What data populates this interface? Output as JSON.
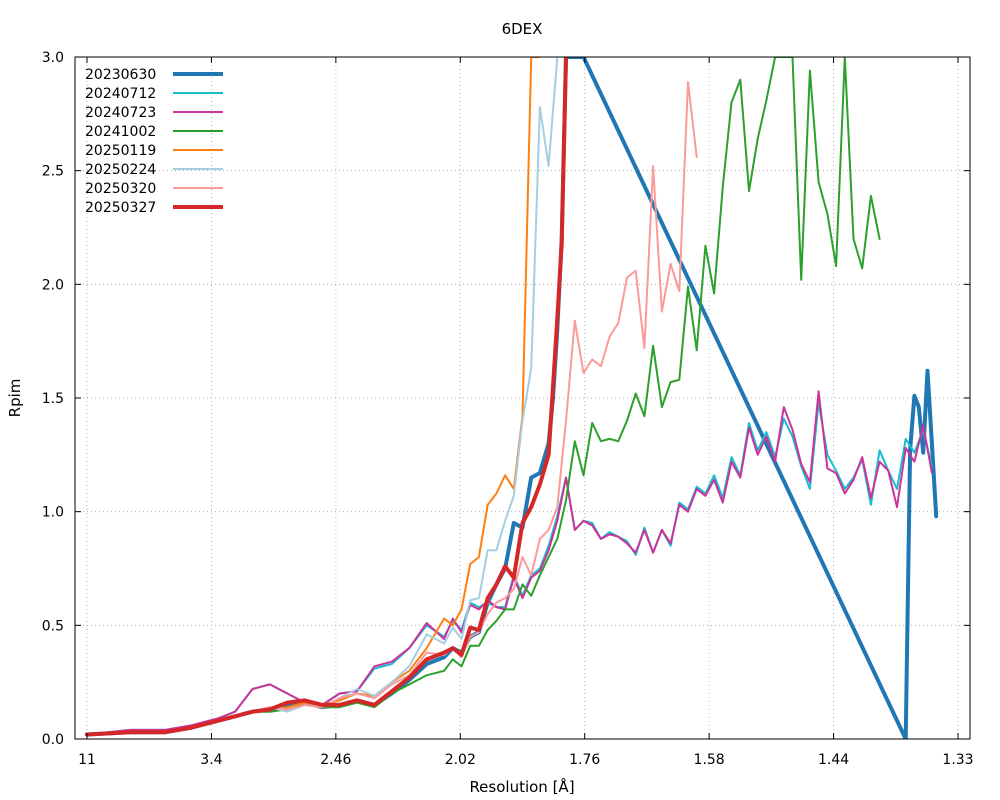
{
  "chart_data": {
    "type": "line",
    "title": "6DEX",
    "xlabel": "Resolution [Å]",
    "ylabel": "Rpim",
    "ylim": [
      0,
      3.0
    ],
    "x_ticks": [
      "11",
      "3.4",
      "2.46",
      "2.02",
      "1.76",
      "1.58",
      "1.44",
      "1.33"
    ],
    "y_ticks": [
      "0.0",
      "0.5",
      "1.0",
      "1.5",
      "2.0",
      "2.5",
      "3.0"
    ],
    "grid": true,
    "legend_position": "top-left",
    "x_note": "x values are the data points' positions (0-1) along the resolution axis between 11 Å and 1.33 Å",
    "series": [
      {
        "name": "20230630",
        "color": "#1f77b4",
        "width": 4,
        "x": [
          0.0,
          0.05,
          0.09,
          0.12,
          0.15,
          0.17,
          0.19,
          0.21,
          0.23,
          0.25,
          0.27,
          0.29,
          0.31,
          0.33,
          0.35,
          0.37,
          0.39,
          0.41,
          0.42,
          0.43,
          0.44,
          0.45,
          0.46,
          0.47,
          0.48,
          0.49,
          0.5,
          0.51,
          0.52,
          0.53,
          0.535,
          0.54,
          0.545,
          0.55,
          0.555,
          0.56,
          0.565,
          0.57,
          0.94,
          0.945,
          0.95,
          0.955,
          0.96,
          0.965,
          0.97,
          0.975
        ],
        "y": [
          0.02,
          0.03,
          0.03,
          0.05,
          0.08,
          0.1,
          0.12,
          0.13,
          0.15,
          0.16,
          0.14,
          0.15,
          0.17,
          0.15,
          0.2,
          0.26,
          0.33,
          0.36,
          0.4,
          0.38,
          0.45,
          0.47,
          0.6,
          0.68,
          0.75,
          0.95,
          0.93,
          1.15,
          1.17,
          1.3,
          1.5,
          1.8,
          2.2,
          3.0,
          3.0,
          3.0,
          3.0,
          3.0,
          0.0,
          1.27,
          1.51,
          1.46,
          1.26,
          1.62,
          1.3,
          0.98
        ]
      },
      {
        "name": "20240712",
        "color": "#17becf",
        "width": 2,
        "x": [
          0.0,
          0.05,
          0.09,
          0.12,
          0.15,
          0.17,
          0.19,
          0.21,
          0.23,
          0.25,
          0.27,
          0.29,
          0.31,
          0.33,
          0.35,
          0.37,
          0.39,
          0.41,
          0.42,
          0.43,
          0.44,
          0.45,
          0.46,
          0.47,
          0.48,
          0.49,
          0.5,
          0.51,
          0.52,
          0.53,
          0.54,
          0.55,
          0.56,
          0.57,
          0.58,
          0.59,
          0.6,
          0.61,
          0.62,
          0.63,
          0.64,
          0.65,
          0.66,
          0.67,
          0.68,
          0.69,
          0.7,
          0.71,
          0.72,
          0.73,
          0.74,
          0.75,
          0.76,
          0.77,
          0.78,
          0.79,
          0.8,
          0.81,
          0.82,
          0.83,
          0.84,
          0.85,
          0.86,
          0.87,
          0.88,
          0.89,
          0.9,
          0.91,
          0.92,
          0.93,
          0.94,
          0.95,
          0.96,
          0.97
        ],
        "y": [
          0.02,
          0.04,
          0.04,
          0.06,
          0.09,
          0.12,
          0.22,
          0.24,
          0.2,
          0.16,
          0.15,
          0.2,
          0.21,
          0.31,
          0.33,
          0.4,
          0.5,
          0.45,
          0.52,
          0.48,
          0.6,
          0.58,
          0.6,
          0.58,
          0.58,
          0.72,
          0.63,
          0.72,
          0.75,
          0.85,
          0.98,
          1.15,
          0.92,
          0.96,
          0.95,
          0.88,
          0.91,
          0.89,
          0.87,
          0.81,
          0.93,
          0.82,
          0.92,
          0.85,
          1.04,
          1.01,
          1.11,
          1.08,
          1.16,
          1.06,
          1.24,
          1.16,
          1.39,
          1.27,
          1.35,
          1.24,
          1.41,
          1.33,
          1.2,
          1.1,
          1.48,
          1.25,
          1.18,
          1.1,
          1.15,
          1.23,
          1.03,
          1.27,
          1.18,
          1.1,
          1.32,
          1.26,
          1.36,
          1.2
        ]
      },
      {
        "name": "20240723",
        "color": "#cc3399",
        "width": 2,
        "x": [
          0.0,
          0.05,
          0.09,
          0.12,
          0.15,
          0.17,
          0.19,
          0.21,
          0.23,
          0.25,
          0.27,
          0.29,
          0.31,
          0.33,
          0.35,
          0.37,
          0.39,
          0.41,
          0.42,
          0.43,
          0.44,
          0.45,
          0.46,
          0.47,
          0.48,
          0.49,
          0.5,
          0.51,
          0.52,
          0.53,
          0.54,
          0.55,
          0.56,
          0.57,
          0.58,
          0.59,
          0.6,
          0.61,
          0.62,
          0.63,
          0.64,
          0.65,
          0.66,
          0.67,
          0.68,
          0.69,
          0.7,
          0.71,
          0.72,
          0.73,
          0.74,
          0.75,
          0.76,
          0.77,
          0.78,
          0.79,
          0.8,
          0.81,
          0.82,
          0.83,
          0.84,
          0.85,
          0.86,
          0.87,
          0.88,
          0.89,
          0.9,
          0.91,
          0.92,
          0.93,
          0.94,
          0.95,
          0.96,
          0.97
        ],
        "y": [
          0.02,
          0.04,
          0.04,
          0.06,
          0.09,
          0.12,
          0.22,
          0.24,
          0.2,
          0.16,
          0.15,
          0.2,
          0.21,
          0.32,
          0.34,
          0.4,
          0.51,
          0.44,
          0.53,
          0.47,
          0.59,
          0.57,
          0.61,
          0.58,
          0.57,
          0.71,
          0.62,
          0.71,
          0.74,
          0.83,
          0.96,
          1.15,
          0.92,
          0.96,
          0.94,
          0.88,
          0.9,
          0.89,
          0.86,
          0.82,
          0.92,
          0.82,
          0.92,
          0.86,
          1.03,
          1.0,
          1.1,
          1.07,
          1.14,
          1.04,
          1.22,
          1.15,
          1.37,
          1.25,
          1.33,
          1.22,
          1.46,
          1.36,
          1.21,
          1.13,
          1.53,
          1.19,
          1.17,
          1.08,
          1.14,
          1.24,
          1.06,
          1.22,
          1.18,
          1.02,
          1.28,
          1.22,
          1.38,
          1.17
        ]
      },
      {
        "name": "20241002",
        "color": "#2ca02c",
        "width": 2,
        "x": [
          0.0,
          0.05,
          0.09,
          0.12,
          0.15,
          0.17,
          0.19,
          0.21,
          0.23,
          0.25,
          0.27,
          0.29,
          0.31,
          0.33,
          0.35,
          0.37,
          0.39,
          0.41,
          0.42,
          0.43,
          0.44,
          0.45,
          0.46,
          0.47,
          0.48,
          0.49,
          0.5,
          0.51,
          0.52,
          0.53,
          0.54,
          0.55,
          0.56,
          0.57,
          0.58,
          0.59,
          0.6,
          0.61,
          0.62,
          0.63,
          0.64,
          0.65,
          0.66,
          0.67,
          0.68,
          0.69,
          0.7,
          0.71,
          0.72,
          0.73,
          0.74,
          0.75,
          0.76,
          0.77,
          0.78,
          0.79,
          0.8,
          0.81,
          0.82,
          0.83,
          0.84,
          0.85,
          0.86,
          0.87,
          0.88,
          0.89,
          0.9,
          0.91
        ],
        "y": [
          0.02,
          0.03,
          0.03,
          0.05,
          0.08,
          0.1,
          0.12,
          0.12,
          0.13,
          0.15,
          0.14,
          0.14,
          0.16,
          0.14,
          0.2,
          0.24,
          0.28,
          0.3,
          0.35,
          0.32,
          0.41,
          0.41,
          0.48,
          0.52,
          0.57,
          0.57,
          0.68,
          0.63,
          0.72,
          0.8,
          0.88,
          1.05,
          1.31,
          1.16,
          1.39,
          1.31,
          1.32,
          1.31,
          1.4,
          1.52,
          1.42,
          1.73,
          1.46,
          1.57,
          1.58,
          1.99,
          1.71,
          2.17,
          1.96,
          2.43,
          2.8,
          2.9,
          2.41,
          2.64,
          2.81,
          3.0,
          3.0,
          3.0,
          2.02,
          2.94,
          2.45,
          2.31,
          2.08,
          3.0,
          2.2,
          2.07,
          2.39,
          2.2
        ]
      },
      {
        "name": "20250119",
        "color": "#ff7f0e",
        "width": 2,
        "x": [
          0.0,
          0.05,
          0.09,
          0.12,
          0.15,
          0.17,
          0.19,
          0.21,
          0.23,
          0.25,
          0.27,
          0.29,
          0.31,
          0.33,
          0.35,
          0.37,
          0.39,
          0.41,
          0.42,
          0.43,
          0.44,
          0.45,
          0.46,
          0.47,
          0.48,
          0.49,
          0.5,
          0.51,
          0.515,
          0.52
        ],
        "y": [
          0.02,
          0.03,
          0.03,
          0.05,
          0.08,
          0.1,
          0.12,
          0.13,
          0.14,
          0.16,
          0.15,
          0.17,
          0.2,
          0.19,
          0.25,
          0.3,
          0.4,
          0.53,
          0.5,
          0.57,
          0.77,
          0.8,
          1.03,
          1.08,
          1.16,
          1.1,
          1.42,
          3.0,
          3.0,
          3.0
        ]
      },
      {
        "name": "20250224",
        "color": "#a6cee3",
        "width": 2,
        "x": [
          0.0,
          0.05,
          0.09,
          0.12,
          0.15,
          0.17,
          0.19,
          0.21,
          0.23,
          0.25,
          0.27,
          0.29,
          0.31,
          0.33,
          0.35,
          0.37,
          0.39,
          0.41,
          0.42,
          0.43,
          0.44,
          0.45,
          0.46,
          0.47,
          0.48,
          0.49,
          0.5,
          0.51,
          0.52,
          0.53,
          0.54
        ],
        "y": [
          0.02,
          0.03,
          0.03,
          0.05,
          0.08,
          0.1,
          0.12,
          0.14,
          0.12,
          0.15,
          0.14,
          0.18,
          0.22,
          0.19,
          0.25,
          0.32,
          0.46,
          0.42,
          0.49,
          0.44,
          0.61,
          0.62,
          0.83,
          0.83,
          0.96,
          1.07,
          1.4,
          1.63,
          2.78,
          2.52,
          3.0
        ]
      },
      {
        "name": "20250320",
        "color": "#fb9a99",
        "width": 2,
        "x": [
          0.0,
          0.05,
          0.09,
          0.12,
          0.15,
          0.17,
          0.19,
          0.21,
          0.23,
          0.25,
          0.27,
          0.29,
          0.31,
          0.33,
          0.35,
          0.37,
          0.39,
          0.41,
          0.42,
          0.43,
          0.44,
          0.45,
          0.46,
          0.47,
          0.48,
          0.49,
          0.5,
          0.51,
          0.52,
          0.53,
          0.54,
          0.55,
          0.56,
          0.57,
          0.58,
          0.59,
          0.6,
          0.61,
          0.62,
          0.63,
          0.64,
          0.65,
          0.66,
          0.67,
          0.68,
          0.69,
          0.7
        ],
        "y": [
          0.02,
          0.03,
          0.03,
          0.05,
          0.08,
          0.1,
          0.12,
          0.14,
          0.13,
          0.15,
          0.14,
          0.18,
          0.2,
          0.18,
          0.24,
          0.28,
          0.38,
          0.37,
          0.4,
          0.36,
          0.45,
          0.47,
          0.55,
          0.6,
          0.62,
          0.66,
          0.8,
          0.72,
          0.88,
          0.92,
          1.02,
          1.4,
          1.84,
          1.61,
          1.67,
          1.64,
          1.77,
          1.83,
          2.03,
          2.06,
          1.72,
          2.52,
          1.88,
          2.09,
          1.97,
          2.89,
          2.56
        ]
      },
      {
        "name": "20250327",
        "color": "#d62728",
        "width": 4,
        "x": [
          0.0,
          0.05,
          0.09,
          0.12,
          0.15,
          0.17,
          0.19,
          0.21,
          0.23,
          0.25,
          0.27,
          0.29,
          0.31,
          0.33,
          0.35,
          0.37,
          0.39,
          0.41,
          0.42,
          0.43,
          0.44,
          0.45,
          0.46,
          0.47,
          0.48,
          0.49,
          0.5,
          0.51,
          0.52,
          0.53,
          0.535,
          0.54,
          0.545,
          0.55
        ],
        "y": [
          0.02,
          0.03,
          0.03,
          0.05,
          0.08,
          0.1,
          0.12,
          0.13,
          0.16,
          0.17,
          0.15,
          0.15,
          0.17,
          0.15,
          0.21,
          0.27,
          0.35,
          0.38,
          0.4,
          0.37,
          0.49,
          0.48,
          0.62,
          0.68,
          0.76,
          0.71,
          0.95,
          1.02,
          1.12,
          1.25,
          1.55,
          1.85,
          2.18,
          3.0
        ]
      }
    ]
  }
}
